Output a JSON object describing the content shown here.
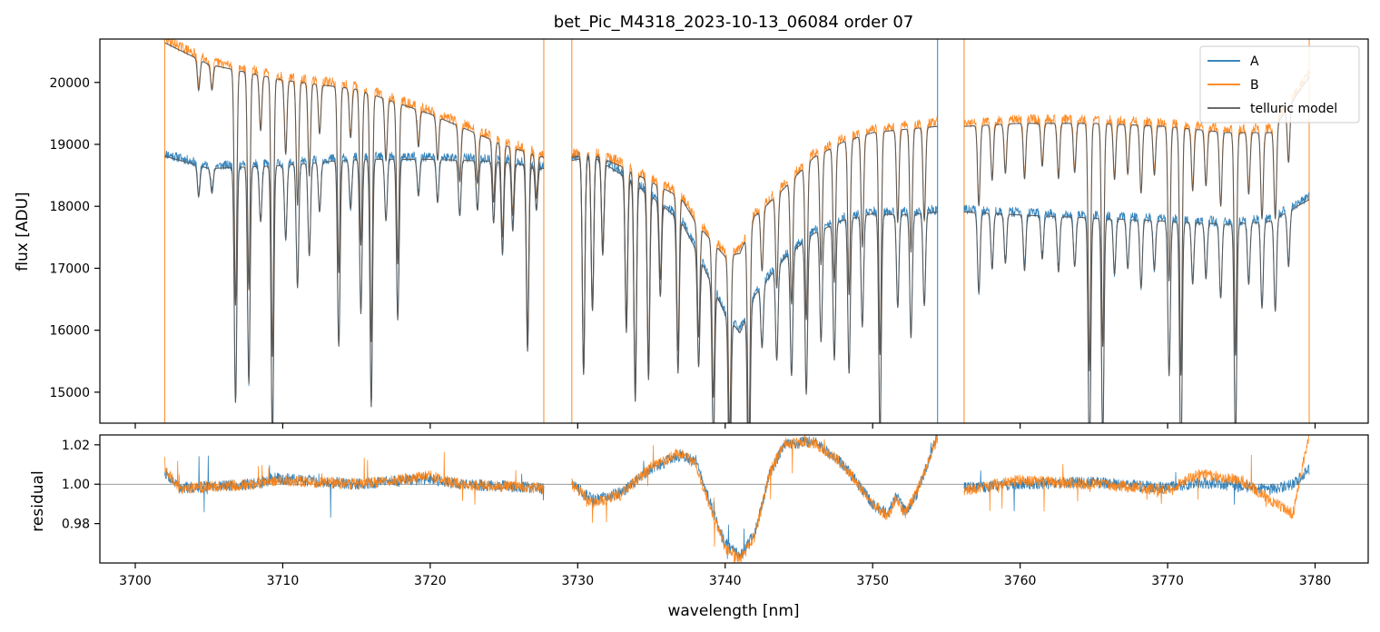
{
  "chart_data": [
    {
      "type": "line",
      "title": "bet_Pic_M4318_2023-10-13_06084  order 07",
      "xlabel": "",
      "ylabel": "flux [ADU]",
      "xlim": [
        3697.6,
        3783.6
      ],
      "ylim": [
        14500,
        20700
      ],
      "x_ticks": [
        3700,
        3710,
        3720,
        3730,
        3740,
        3750,
        3760,
        3770,
        3780
      ],
      "y_ticks": [
        15000,
        16000,
        17000,
        18000,
        19000,
        20000
      ],
      "y_tick_labels": [
        "15000",
        "16000",
        "17000",
        "18000",
        "19000",
        "20000"
      ],
      "legend": {
        "location": "top-right",
        "entries": [
          "A",
          "B",
          "telluric model"
        ]
      },
      "segments": [
        [
          3702.0,
          3727.7
        ],
        [
          3729.6,
          3754.4
        ],
        [
          3756.2,
          3779.6
        ]
      ],
      "absorption_lines": [
        [
          3704.3,
          500
        ],
        [
          3705.2,
          400
        ],
        [
          3706.8,
          3800
        ],
        [
          3707.7,
          3500
        ],
        [
          3708.5,
          900
        ],
        [
          3709.3,
          4500
        ],
        [
          3710.2,
          1200
        ],
        [
          3711.0,
          2000
        ],
        [
          3711.8,
          1500
        ],
        [
          3712.5,
          800
        ],
        [
          3713.8,
          3000
        ],
        [
          3714.6,
          800
        ],
        [
          3715.3,
          2500
        ],
        [
          3716.0,
          4000
        ],
        [
          3717.0,
          1000
        ],
        [
          3717.8,
          2600
        ],
        [
          3719.2,
          600
        ],
        [
          3720.5,
          700
        ],
        [
          3722.0,
          900
        ],
        [
          3723.2,
          800
        ],
        [
          3724.3,
          1000
        ],
        [
          3724.9,
          1500
        ],
        [
          3725.6,
          1100
        ],
        [
          3726.6,
          3000
        ],
        [
          3727.2,
          700
        ],
        [
          3730.4,
          3500
        ],
        [
          3731.0,
          2500
        ],
        [
          3731.7,
          1500
        ],
        [
          3733.3,
          2500
        ],
        [
          3733.9,
          3500
        ],
        [
          3734.8,
          3000
        ],
        [
          3735.6,
          1500
        ],
        [
          3736.8,
          2500
        ],
        [
          3738.2,
          1800
        ],
        [
          3739.2,
          2500
        ],
        [
          3740.3,
          3000
        ],
        [
          3741.6,
          3500
        ],
        [
          3742.5,
          1000
        ],
        [
          3743.5,
          1500
        ],
        [
          3744.5,
          2000
        ],
        [
          3745.5,
          2500
        ],
        [
          3746.5,
          1800
        ],
        [
          3747.4,
          2200
        ],
        [
          3748.4,
          2500
        ],
        [
          3749.3,
          1800
        ],
        [
          3750.5,
          3600
        ],
        [
          3751.7,
          1500
        ],
        [
          3752.6,
          2000
        ],
        [
          3753.5,
          1500
        ],
        [
          3757.2,
          1300
        ],
        [
          3758.1,
          900
        ],
        [
          3759.0,
          800
        ],
        [
          3760.3,
          900
        ],
        [
          3761.5,
          700
        ],
        [
          3762.6,
          900
        ],
        [
          3763.7,
          800
        ],
        [
          3764.7,
          4000
        ],
        [
          3765.6,
          3600
        ],
        [
          3766.4,
          900
        ],
        [
          3767.3,
          800
        ],
        [
          3768.2,
          1100
        ],
        [
          3769.1,
          800
        ],
        [
          3770.1,
          2500
        ],
        [
          3770.9,
          4000
        ],
        [
          3771.7,
          1000
        ],
        [
          3772.6,
          900
        ],
        [
          3773.6,
          1200
        ],
        [
          3774.6,
          3600
        ],
        [
          3775.5,
          1000
        ],
        [
          3776.4,
          1400
        ],
        [
          3777.3,
          1500
        ],
        [
          3778.2,
          900
        ]
      ],
      "series": [
        {
          "name": "A",
          "color": "#1f77b4",
          "continuum": [
            [
              3702.0,
              18850
            ],
            [
              3705,
              18650
            ],
            [
              3710,
              18700
            ],
            [
              3715,
              18800
            ],
            [
              3720,
              18800
            ],
            [
              3725,
              18760
            ],
            [
              3727.7,
              18650
            ],
            [
              3729.6,
              18780
            ],
            [
              3731,
              18850
            ],
            [
              3733,
              18550
            ],
            [
              3735,
              18200
            ],
            [
              3737,
              17800
            ],
            [
              3738,
              17350
            ],
            [
              3740,
              16300
            ],
            [
              3741,
              16000
            ],
            [
              3742,
              16600
            ],
            [
              3744,
              17200
            ],
            [
              3746,
              17600
            ],
            [
              3748,
              17820
            ],
            [
              3750,
              17920
            ],
            [
              3752,
              17900
            ],
            [
              3754.4,
              17950
            ],
            [
              3756.2,
              17950
            ],
            [
              3760,
              17900
            ],
            [
              3765,
              17850
            ],
            [
              3770,
              17800
            ],
            [
              3774,
              17750
            ],
            [
              3777,
              17800
            ],
            [
              3779.6,
              18150
            ]
          ]
        },
        {
          "name": "B",
          "color": "#ff7f0e",
          "continuum": [
            [
              3702.0,
              20700
            ],
            [
              3705,
              20350
            ],
            [
              3710,
              20100
            ],
            [
              3715,
              19950
            ],
            [
              3720,
              19550
            ],
            [
              3725,
              19050
            ],
            [
              3727.7,
              18850
            ],
            [
              3729.6,
              18850
            ],
            [
              3731,
              18900
            ],
            [
              3733,
              18700
            ],
            [
              3735,
              18450
            ],
            [
              3737,
              18200
            ],
            [
              3738,
              17800
            ],
            [
              3740,
              17250
            ],
            [
              3741,
              17300
            ],
            [
              3742,
              17900
            ],
            [
              3744,
              18350
            ],
            [
              3746,
              18850
            ],
            [
              3748,
              19100
            ],
            [
              3750,
              19250
            ],
            [
              3752,
              19300
            ],
            [
              3754.4,
              19350
            ],
            [
              3756.2,
              19350
            ],
            [
              3760,
              19400
            ],
            [
              3765,
              19400
            ],
            [
              3770,
              19350
            ],
            [
              3774,
              19250
            ],
            [
              3777,
              19250
            ],
            [
              3779.6,
              20150
            ]
          ]
        },
        {
          "name": "telluric model",
          "color": "#555555"
        }
      ],
      "spike_lines": [
        {
          "series": "B",
          "x": 3702.0
        },
        {
          "series": "B",
          "x": 3727.7
        },
        {
          "series": "B",
          "x": 3729.6
        },
        {
          "series": "A",
          "x": 3754.4
        },
        {
          "series": "B",
          "x": 3756.2
        },
        {
          "series": "B",
          "x": 3779.6
        }
      ]
    },
    {
      "type": "line",
      "title": "",
      "xlabel": "wavelength [nm]",
      "ylabel": "residual",
      "xlim": [
        3697.6,
        3783.6
      ],
      "ylim": [
        0.96,
        1.025
      ],
      "x_ticks": [
        3700,
        3710,
        3720,
        3730,
        3740,
        3750,
        3760,
        3770,
        3780
      ],
      "x_tick_labels": [
        "3700",
        "3710",
        "3720",
        "3730",
        "3740",
        "3750",
        "3760",
        "3770",
        "3780"
      ],
      "y_ticks": [
        0.98,
        1.0,
        1.02
      ],
      "y_tick_labels": [
        "0.98",
        "1.00",
        "1.02"
      ],
      "reference_line": 1.0,
      "series": [
        {
          "name": "A",
          "color": "#1f77b4",
          "trend": [
            [
              3702.0,
              1.006
            ],
            [
              3703,
              0.998
            ],
            [
              3708,
              1.0
            ],
            [
              3709.5,
              1.003
            ],
            [
              3715,
              1.0
            ],
            [
              3720,
              1.003
            ],
            [
              3722,
              1.0
            ],
            [
              3727.7,
              0.998
            ],
            [
              3729.6,
              1.0
            ],
            [
              3731,
              0.992
            ],
            [
              3733,
              0.996
            ],
            [
              3735,
              1.008
            ],
            [
              3737,
              1.015
            ],
            [
              3738,
              1.012
            ],
            [
              3739,
              0.99
            ],
            [
              3740,
              0.97
            ],
            [
              3741,
              0.963
            ],
            [
              3742,
              0.975
            ],
            [
              3743,
              1.005
            ],
            [
              3744,
              1.02
            ],
            [
              3746,
              1.022
            ],
            [
              3748,
              1.01
            ],
            [
              3750,
              0.99
            ],
            [
              3751,
              0.985
            ],
            [
              3751.6,
              0.994
            ],
            [
              3752.2,
              0.986
            ],
            [
              3753,
              0.995
            ],
            [
              3754.4,
              1.025
            ],
            [
              3756.2,
              0.998
            ],
            [
              3760,
              1.0
            ],
            [
              3765,
              1.001
            ],
            [
              3770,
              0.998
            ],
            [
              3772,
              1.001
            ],
            [
              3775,
              0.999
            ],
            [
              3777,
              0.997
            ],
            [
              3778.5,
              1.0
            ],
            [
              3779.6,
              1.007
            ]
          ]
        },
        {
          "name": "B",
          "color": "#ff7f0e",
          "trend": [
            [
              3702.0,
              1.007
            ],
            [
              3703,
              0.998
            ],
            [
              3708,
              1.0
            ],
            [
              3709.5,
              1.002
            ],
            [
              3715,
              1.0
            ],
            [
              3720,
              1.004
            ],
            [
              3722,
              1.0
            ],
            [
              3727.7,
              0.998
            ],
            [
              3729.6,
              1.0
            ],
            [
              3731,
              0.99
            ],
            [
              3733,
              0.995
            ],
            [
              3735,
              1.009
            ],
            [
              3737,
              1.016
            ],
            [
              3738,
              1.01
            ],
            [
              3739,
              0.988
            ],
            [
              3740,
              0.968
            ],
            [
              3741,
              0.962
            ],
            [
              3742,
              0.973
            ],
            [
              3743,
              1.006
            ],
            [
              3744,
              1.021
            ],
            [
              3746,
              1.021
            ],
            [
              3748,
              1.01
            ],
            [
              3750,
              0.99
            ],
            [
              3751,
              0.984
            ],
            [
              3751.6,
              0.993
            ],
            [
              3752.2,
              0.985
            ],
            [
              3753,
              0.996
            ],
            [
              3754.4,
              1.024
            ],
            [
              3756.2,
              0.997
            ],
            [
              3760,
              1.002
            ],
            [
              3765,
              1.0
            ],
            [
              3770,
              0.997
            ],
            [
              3772,
              1.005
            ],
            [
              3775,
              1.002
            ],
            [
              3777,
              0.992
            ],
            [
              3778.5,
              0.985
            ],
            [
              3779.6,
              1.025
            ]
          ]
        }
      ]
    }
  ]
}
